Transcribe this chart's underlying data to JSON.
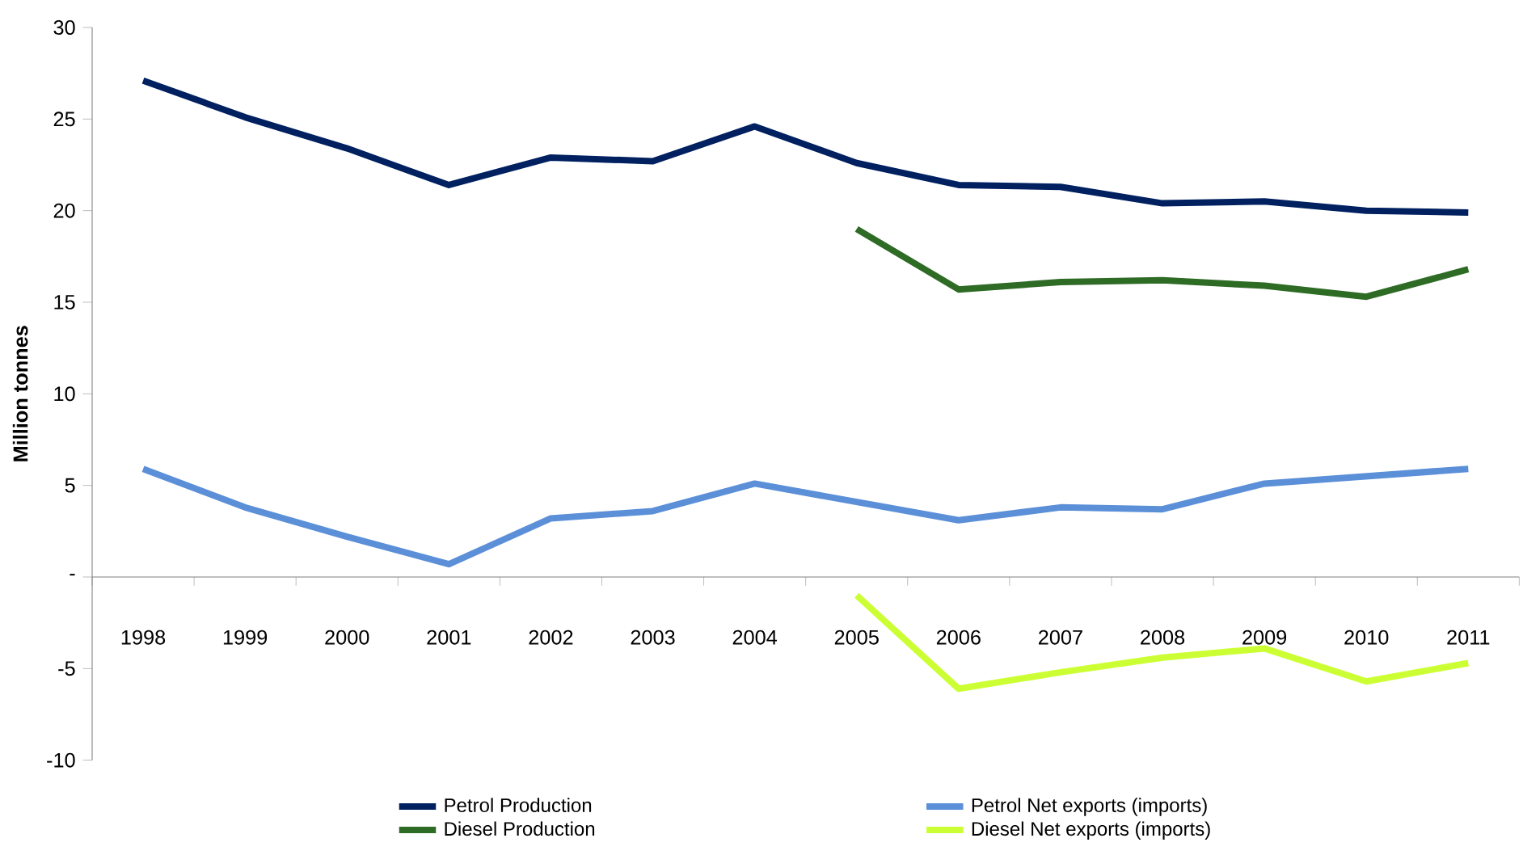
{
  "chart_data": {
    "type": "line",
    "ylabel": "Million tonnes",
    "categories": [
      "1998",
      "1999",
      "2000",
      "2001",
      "2002",
      "2003",
      "2004",
      "2005",
      "2006",
      "2007",
      "2008",
      "2009",
      "2010",
      "2011"
    ],
    "series": [
      {
        "name": "Petrol Production",
        "color": "#002060",
        "values": [
          27.1,
          25.1,
          23.4,
          21.4,
          22.9,
          22.7,
          24.6,
          22.6,
          21.4,
          21.3,
          20.4,
          20.5,
          20.0,
          19.9
        ]
      },
      {
        "name": "Diesel Production",
        "color": "#2e6b25",
        "values": [
          null,
          null,
          null,
          null,
          null,
          null,
          null,
          19.0,
          15.7,
          16.1,
          16.2,
          15.9,
          15.3,
          16.8
        ]
      },
      {
        "name": "Petrol Net exports  (imports)",
        "color": "#5b8fd8",
        "values": [
          5.9,
          3.8,
          2.2,
          0.7,
          3.2,
          3.6,
          5.1,
          4.1,
          3.1,
          3.8,
          3.7,
          5.1,
          5.5,
          5.9
        ]
      },
      {
        "name": "Diesel Net exports (imports)",
        "color": "#ccff33",
        "values": [
          null,
          null,
          null,
          null,
          null,
          null,
          null,
          -1.0,
          -6.1,
          -5.2,
          -4.4,
          -3.9,
          -5.7,
          -4.7
        ]
      }
    ],
    "ylim": [
      -10,
      30
    ],
    "yticks": [
      -10,
      -5,
      {
        "value": 0,
        "label": "-"
      },
      5,
      10,
      15,
      20,
      25,
      30
    ],
    "legend": "bottom",
    "line_style": "solid"
  }
}
